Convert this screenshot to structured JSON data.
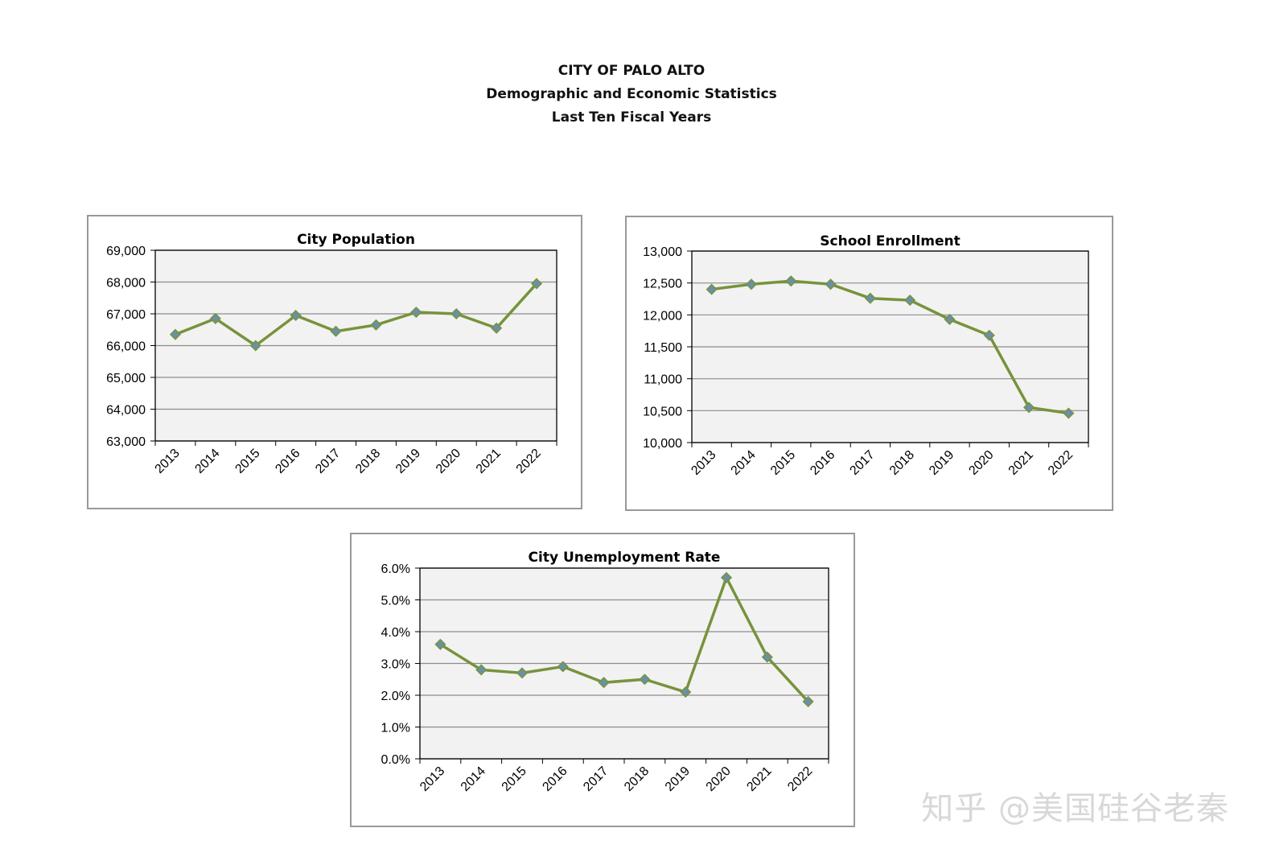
{
  "header": {
    "line1": "CITY OF PALO ALTO",
    "line2": "Demographic and Economic Statistics",
    "line3": "Last Ten Fiscal Years"
  },
  "watermark": "知乎 @美国硅谷老秦",
  "colors": {
    "line": "#77933c",
    "marker": "#6a8fa8",
    "plot_bg": "#f2f2f2",
    "grid": "#8c8c8c"
  },
  "chart_data": [
    {
      "type": "line",
      "title": "City Population",
      "categories": [
        "2013",
        "2014",
        "2015",
        "2016",
        "2017",
        "2018",
        "2019",
        "2020",
        "2021",
        "2022"
      ],
      "values": [
        66350,
        66850,
        66000,
        66950,
        66450,
        66650,
        67050,
        67000,
        66550,
        67950
      ],
      "ylim": [
        63000,
        69000
      ],
      "yticks": [
        63000,
        64000,
        65000,
        66000,
        67000,
        68000,
        69000
      ],
      "ytick_labels": [
        "63,000",
        "64,000",
        "65,000",
        "66,000",
        "67,000",
        "68,000",
        "69,000"
      ],
      "grid": true
    },
    {
      "type": "line",
      "title": "School Enrollment",
      "categories": [
        "2013",
        "2014",
        "2015",
        "2016",
        "2017",
        "2018",
        "2019",
        "2020",
        "2021",
        "2022"
      ],
      "values": [
        12400,
        12480,
        12530,
        12480,
        12260,
        12230,
        11930,
        11680,
        10550,
        10460
      ],
      "ylim": [
        10000,
        13000
      ],
      "yticks": [
        10000,
        10500,
        11000,
        11500,
        12000,
        12500,
        13000
      ],
      "ytick_labels": [
        "10,000",
        "10,500",
        "11,000",
        "11,500",
        "12,000",
        "12,500",
        "13,000"
      ],
      "grid": true
    },
    {
      "type": "line",
      "title": "City Unemployment Rate",
      "categories": [
        "2013",
        "2014",
        "2015",
        "2016",
        "2017",
        "2018",
        "2019",
        "2020",
        "2021",
        "2022"
      ],
      "values": [
        3.6,
        2.8,
        2.7,
        2.9,
        2.4,
        2.5,
        2.1,
        5.7,
        3.2,
        1.8
      ],
      "ylim": [
        0,
        6
      ],
      "yticks": [
        0,
        1,
        2,
        3,
        4,
        5,
        6
      ],
      "ytick_labels": [
        "0.0%",
        "1.0%",
        "2.0%",
        "3.0%",
        "4.0%",
        "5.0%",
        "6.0%"
      ],
      "grid": true
    }
  ]
}
